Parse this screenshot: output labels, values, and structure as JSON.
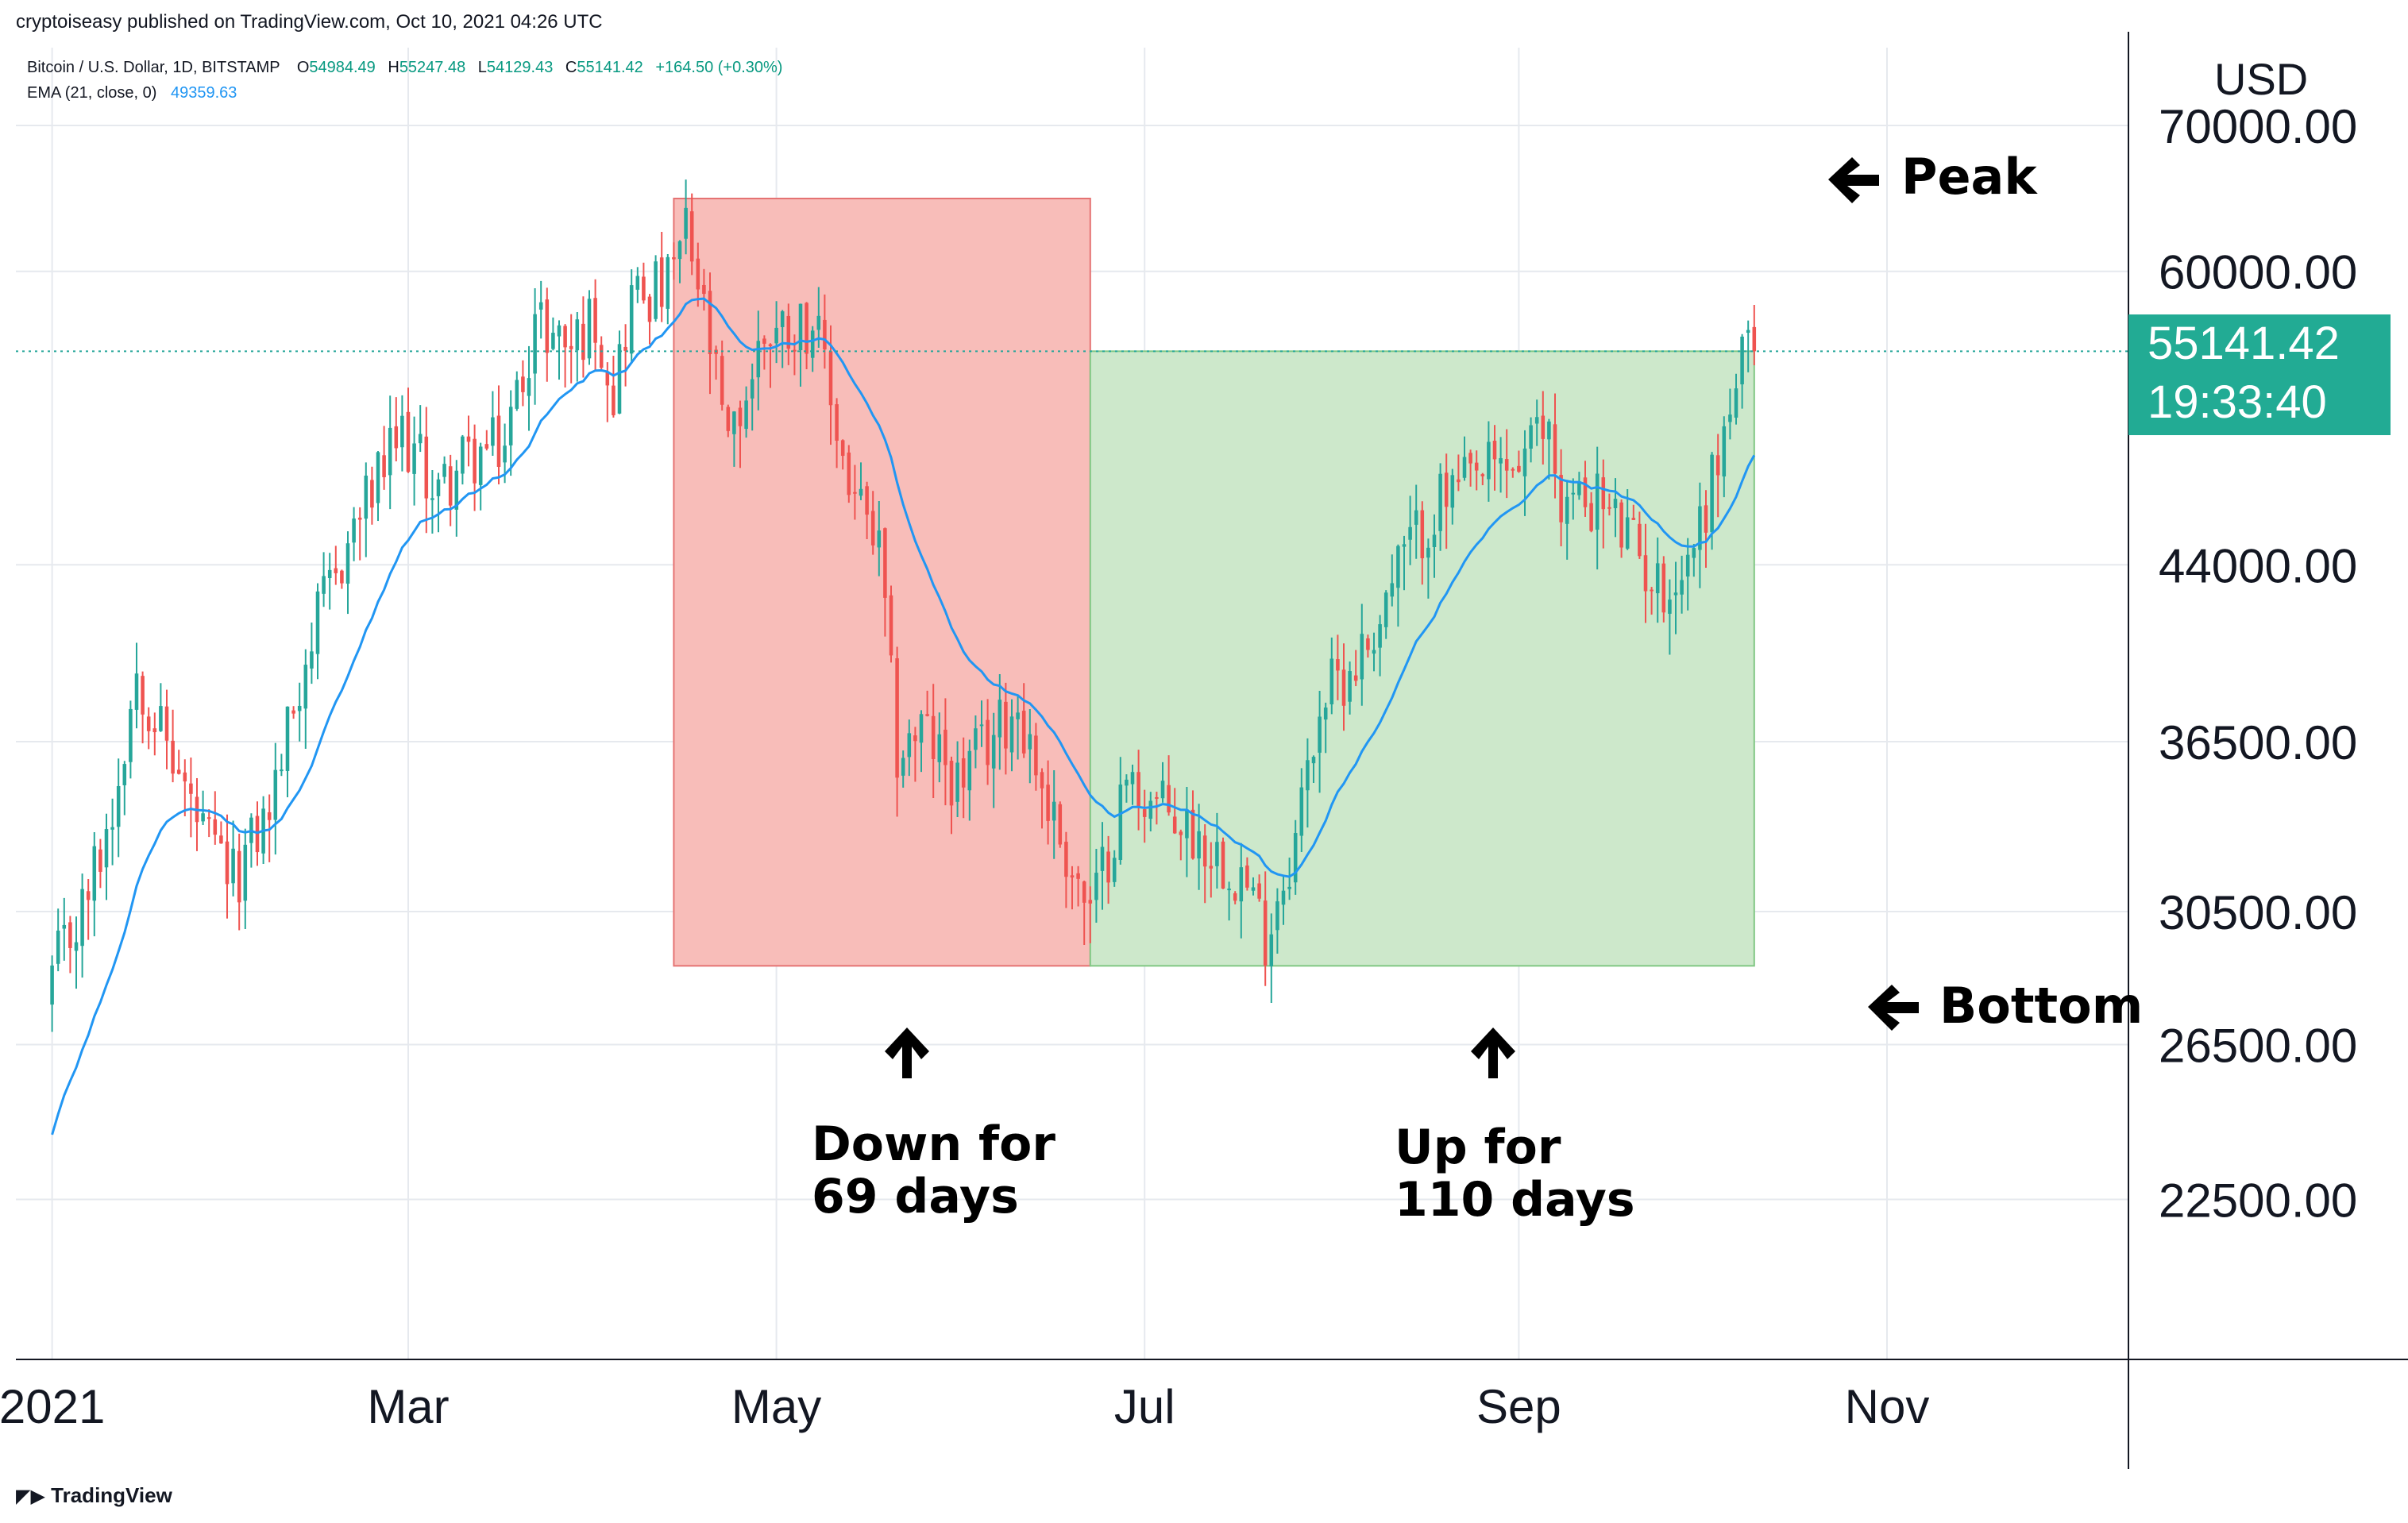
{
  "publisher_line": "cryptoiseasy published on TradingView.com, Oct 10, 2021 04:26 UTC",
  "legend": {
    "symbol": "Bitcoin / U.S. Dollar, 1D, BITSTAMP",
    "o_label": "O",
    "o": "54984.49",
    "h_label": "H",
    "h": "55247.48",
    "l_label": "L",
    "l": "54129.43",
    "c_label": "C",
    "c": "55141.42",
    "change": "+164.50 (+0.30%)",
    "ema_label": "EMA (21, close, 0)",
    "ema_value": "49359.63"
  },
  "currency": "USD",
  "last_price": "55141.42",
  "countdown": "19:33:40",
  "annotations": {
    "peak": "Peak",
    "bottom": "Bottom",
    "down": "Down for\n69 days",
    "up": "Up for\n110 days"
  },
  "footer_logo": "TradingView",
  "colors": {
    "up": "#26a69a",
    "down": "#ef5350",
    "ema": "#2196f3",
    "down_zone": "#f8bdb9",
    "up_zone": "#cde8cb",
    "price_badge": "#22ab94"
  },
  "chart_data": {
    "type": "candlestick",
    "title": "Bitcoin / U.S. Dollar, 1D, BITSTAMP",
    "scale": "log",
    "ylim": [
      19000,
      76000
    ],
    "y_ticks": [
      "22500.00",
      "26500.00",
      "30500.00",
      "36500.00",
      "44000.00",
      "60000.00",
      "70000.00"
    ],
    "y_tick_values": [
      22500,
      26500,
      30500,
      36500,
      44000,
      60000,
      70000
    ],
    "x_ticks": [
      "2021",
      "Mar",
      "May",
      "Jul",
      "Sep",
      "Nov"
    ],
    "x_tick_days": [
      0,
      59,
      120,
      181,
      243,
      304
    ],
    "x_range_days": [
      -6,
      344
    ],
    "last_price": 55141.42,
    "ema_period": 21,
    "zones": [
      {
        "name": "down",
        "start_day": 103,
        "end_day": 172,
        "high": 64800,
        "low": 28800,
        "label": "Down for 69 days"
      },
      {
        "name": "up",
        "start_day": 172,
        "end_day": 282,
        "high": 55141.42,
        "low": 28800,
        "label": "Up for 110 days"
      }
    ],
    "anchors": [
      [
        0,
        28500
      ],
      [
        5,
        30500
      ],
      [
        10,
        34000
      ],
      [
        14,
        39500
      ],
      [
        18,
        37000
      ],
      [
        25,
        33000
      ],
      [
        30,
        31500
      ],
      [
        36,
        34000
      ],
      [
        42,
        40000
      ],
      [
        50,
        45800
      ],
      [
        58,
        50500
      ],
      [
        64,
        47500
      ],
      [
        68,
        49000
      ],
      [
        75,
        50000
      ],
      [
        80,
        57000
      ],
      [
        86,
        55500
      ],
      [
        90,
        57300
      ],
      [
        93,
        53000
      ],
      [
        96,
        58500
      ],
      [
        102,
        59000
      ],
      [
        105,
        62500
      ],
      [
        108,
        57300
      ],
      [
        112,
        49500
      ],
      [
        118,
        56300
      ],
      [
        126,
        57000
      ],
      [
        132,
        48000
      ],
      [
        137,
        44500
      ],
      [
        140,
        36000
      ],
      [
        144,
        37000
      ],
      [
        150,
        35000
      ],
      [
        160,
        38000
      ],
      [
        165,
        34200
      ],
      [
        172,
        30300
      ],
      [
        178,
        35000
      ],
      [
        190,
        33000
      ],
      [
        197,
        31800
      ],
      [
        201,
        29800
      ],
      [
        206,
        33000
      ],
      [
        210,
        38000
      ],
      [
        218,
        40500
      ],
      [
        224,
        44500
      ],
      [
        230,
        47000
      ],
      [
        238,
        48500
      ],
      [
        243,
        49000
      ],
      [
        248,
        51000
      ],
      [
        250,
        47000
      ],
      [
        256,
        47300
      ],
      [
        262,
        44800
      ],
      [
        266,
        43000
      ],
      [
        270,
        43500
      ],
      [
        274,
        47000
      ],
      [
        280,
        54600
      ],
      [
        282,
        55141.42
      ]
    ]
  }
}
